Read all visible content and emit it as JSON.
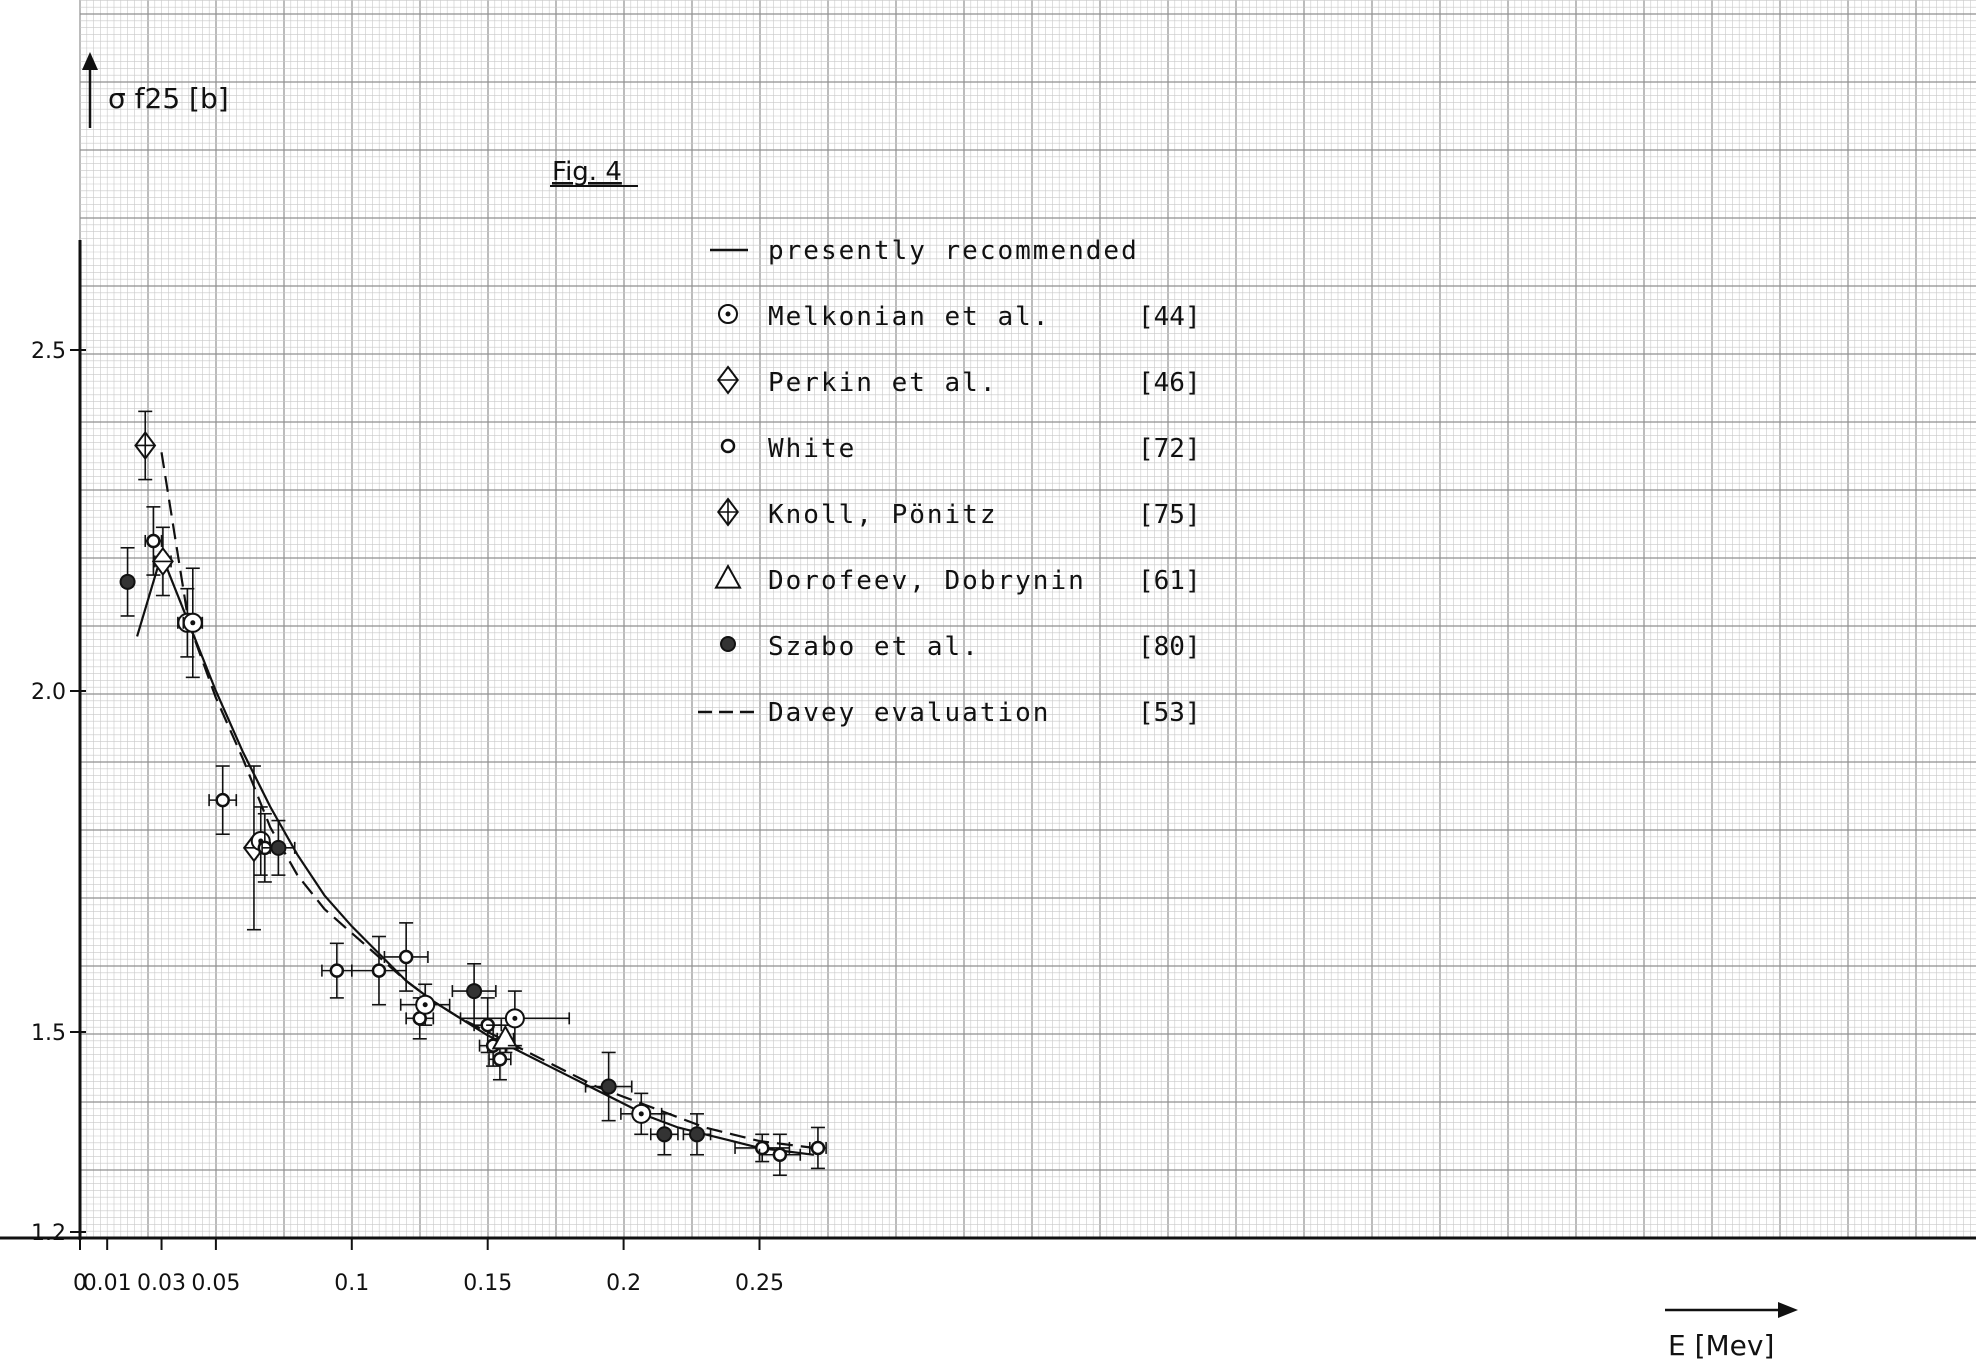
{
  "chart_data": {
    "type": "scatter",
    "title": "Fig. 4",
    "xlabel": "E [Mev]",
    "ylabel": "σ f25 [b]",
    "xlim": [
      0,
      0.275
    ],
    "ylim": [
      1.2,
      2.7
    ],
    "x_ticks": [
      {
        "value": 0,
        "label": "0"
      },
      {
        "value": 0.01,
        "label": "0.01"
      },
      {
        "value": 0.03,
        "label": "0.03"
      },
      {
        "value": 0.05,
        "label": "0.05"
      },
      {
        "value": 0.1,
        "label": "0.1"
      },
      {
        "value": 0.15,
        "label": "0.15"
      },
      {
        "value": 0.2,
        "label": "0.2"
      },
      {
        "value": 0.25,
        "label": "0.25"
      }
    ],
    "y_ticks": [
      {
        "value": 1.2,
        "label": "1.2"
      },
      {
        "value": 1.5,
        "label": "1.5"
      },
      {
        "value": 2.0,
        "label": "2.0"
      },
      {
        "value": 2.5,
        "label": "2.5"
      }
    ],
    "grid": true,
    "legend_position": "top-center",
    "legend": [
      {
        "key": "recommended",
        "label": "presently recommended",
        "ref": "",
        "symbol": "solid-line"
      },
      {
        "key": "melkonian",
        "label": "Melkonian et al.",
        "ref": "[44]",
        "symbol": "circle-dot"
      },
      {
        "key": "perkin",
        "label": "Perkin et al.",
        "ref": "[46]",
        "symbol": "diamond"
      },
      {
        "key": "white",
        "label": "White",
        "ref": "[72]",
        "symbol": "small-circle"
      },
      {
        "key": "knoll",
        "label": "Knoll, Pönitz",
        "ref": "[75]",
        "symbol": "diamond-cross"
      },
      {
        "key": "dorofeev",
        "label": "Dorofeev, Dobrynin",
        "ref": "[61]",
        "symbol": "triangle"
      },
      {
        "key": "szabo",
        "label": "Szabo et al.",
        "ref": "[80]",
        "symbol": "filled-circle"
      },
      {
        "key": "davey",
        "label": "Davey evaluation",
        "ref": "[53]",
        "symbol": "dashed-line"
      }
    ],
    "series": [
      {
        "name": "presently recommended",
        "style": "solid",
        "points": [
          [
            0.021,
            2.08
          ],
          [
            0.03,
            2.2
          ],
          [
            0.04,
            2.1
          ],
          [
            0.05,
            2.0
          ],
          [
            0.06,
            1.91
          ],
          [
            0.07,
            1.83
          ],
          [
            0.08,
            1.76
          ],
          [
            0.09,
            1.7
          ],
          [
            0.1,
            1.655
          ],
          [
            0.11,
            1.615
          ],
          [
            0.12,
            1.575
          ],
          [
            0.13,
            1.545
          ],
          [
            0.14,
            1.52
          ],
          [
            0.15,
            1.495
          ],
          [
            0.16,
            1.475
          ],
          [
            0.17,
            1.455
          ],
          [
            0.18,
            1.435
          ],
          [
            0.19,
            1.415
          ],
          [
            0.2,
            1.395
          ],
          [
            0.21,
            1.375
          ],
          [
            0.22,
            1.36
          ],
          [
            0.23,
            1.35
          ],
          [
            0.24,
            1.34
          ],
          [
            0.25,
            1.33
          ],
          [
            0.26,
            1.325
          ],
          [
            0.27,
            1.32
          ]
        ]
      },
      {
        "name": "Davey evaluation",
        "style": "dashed",
        "points": [
          [
            0.03,
            2.35
          ],
          [
            0.04,
            2.1
          ],
          [
            0.05,
            1.99
          ],
          [
            0.06,
            1.9
          ],
          [
            0.07,
            1.8
          ],
          [
            0.08,
            1.73
          ],
          [
            0.09,
            1.68
          ],
          [
            0.1,
            1.645
          ],
          [
            0.11,
            1.61
          ],
          [
            0.12,
            1.575
          ],
          [
            0.13,
            1.545
          ],
          [
            0.14,
            1.52
          ],
          [
            0.15,
            1.5
          ],
          [
            0.16,
            1.48
          ],
          [
            0.17,
            1.46
          ],
          [
            0.18,
            1.44
          ],
          [
            0.19,
            1.42
          ],
          [
            0.2,
            1.405
          ],
          [
            0.21,
            1.39
          ],
          [
            0.22,
            1.375
          ],
          [
            0.23,
            1.36
          ],
          [
            0.24,
            1.35
          ],
          [
            0.25,
            1.34
          ],
          [
            0.26,
            1.335
          ],
          [
            0.27,
            1.33
          ]
        ]
      }
    ],
    "points": [
      {
        "series": "Szabo et al.",
        "symbol": "filled-circle",
        "x": 0.0175,
        "y": 2.16,
        "xerr": 0.0018,
        "yerr": 0.05
      },
      {
        "series": "Knoll, Pönitz",
        "symbol": "diamond-cross",
        "x": 0.024,
        "y": 2.36,
        "xerr": 0,
        "yerr": 0.05
      },
      {
        "series": "White",
        "symbol": "small-circle",
        "x": 0.027,
        "y": 2.22,
        "xerr": 0.003,
        "yerr": 0.05
      },
      {
        "series": "Perkin et al.",
        "symbol": "diamond",
        "x": 0.0305,
        "y": 2.19,
        "xerr": 0.003,
        "yerr": 0.05
      },
      {
        "series": "Melkonian et al.",
        "symbol": "circle-dot",
        "x": 0.0395,
        "y": 2.1,
        "xerr": 0.0035,
        "yerr": 0.05
      },
      {
        "series": "Melkonian et al.",
        "symbol": "circle-dot",
        "x": 0.0415,
        "y": 2.1,
        "xerr": 0.0035,
        "yerr": 0.08
      },
      {
        "series": "White",
        "symbol": "small-circle",
        "x": 0.0525,
        "y": 1.84,
        "xerr": 0.005,
        "yerr": 0.05
      },
      {
        "series": "Perkin et al.",
        "symbol": "diamond",
        "x": 0.064,
        "y": 1.77,
        "xerr": 0.001,
        "yerr": 0.12
      },
      {
        "series": "Melkonian et al.",
        "symbol": "circle-dot",
        "x": 0.0665,
        "y": 1.78,
        "xerr": 0.002,
        "yerr": 0.05
      },
      {
        "series": "White",
        "symbol": "small-circle",
        "x": 0.068,
        "y": 1.77,
        "xerr": 0.002,
        "yerr": 0.05
      },
      {
        "series": "Szabo et al.",
        "symbol": "filled-circle",
        "x": 0.073,
        "y": 1.77,
        "xerr": 0.006,
        "yerr": 0.04
      },
      {
        "series": "White",
        "symbol": "small-circle",
        "x": 0.0945,
        "y": 1.59,
        "xerr": 0.0055,
        "yerr": 0.04
      },
      {
        "series": "White",
        "symbol": "small-circle",
        "x": 0.11,
        "y": 1.59,
        "xerr": 0.01,
        "yerr": 0.05
      },
      {
        "series": "White",
        "symbol": "small-circle",
        "x": 0.12,
        "y": 1.61,
        "xerr": 0.008,
        "yerr": 0.05
      },
      {
        "series": "White",
        "symbol": "small-circle",
        "x": 0.125,
        "y": 1.52,
        "xerr": 0.005,
        "yerr": 0.03
      },
      {
        "series": "Melkonian et al.",
        "symbol": "circle-dot",
        "x": 0.127,
        "y": 1.54,
        "xerr": 0.009,
        "yerr": 0.03
      },
      {
        "series": "Szabo et al.",
        "symbol": "filled-circle",
        "x": 0.145,
        "y": 1.56,
        "xerr": 0.008,
        "yerr": 0.04
      },
      {
        "series": "White",
        "symbol": "small-circle",
        "x": 0.15,
        "y": 1.51,
        "xerr": 0.005,
        "yerr": 0.04
      },
      {
        "series": "White",
        "symbol": "small-circle",
        "x": 0.152,
        "y": 1.48,
        "xerr": 0.005,
        "yerr": 0.03
      },
      {
        "series": "White",
        "symbol": "small-circle",
        "x": 0.1545,
        "y": 1.46,
        "xerr": 0.004,
        "yerr": 0.03
      },
      {
        "series": "Dorofeev, Dobrynin",
        "symbol": "triangle",
        "x": 0.1565,
        "y": 1.49,
        "xerr": 0.003,
        "yerr": 0.02
      },
      {
        "series": "Melkonian et al.",
        "symbol": "circle-dot",
        "x": 0.16,
        "y": 1.52,
        "xerr": 0.02,
        "yerr": 0.04
      },
      {
        "series": "Szabo et al.",
        "symbol": "filled-circle",
        "x": 0.1945,
        "y": 1.42,
        "xerr": 0.0085,
        "yerr": 0.05
      },
      {
        "series": "Melkonian et al.",
        "symbol": "circle-dot",
        "x": 0.2065,
        "y": 1.38,
        "xerr": 0.0075,
        "yerr": 0.03
      },
      {
        "series": "Szabo et al.",
        "symbol": "filled-circle",
        "x": 0.215,
        "y": 1.35,
        "xerr": 0.005,
        "yerr": 0.03
      },
      {
        "series": "Szabo et al.",
        "symbol": "filled-circle",
        "x": 0.227,
        "y": 1.35,
        "xerr": 0.005,
        "yerr": 0.03
      },
      {
        "series": "White",
        "symbol": "small-circle",
        "x": 0.251,
        "y": 1.33,
        "xerr": 0.01,
        "yerr": 0.02
      },
      {
        "series": "White",
        "symbol": "small-circle",
        "x": 0.2575,
        "y": 1.32,
        "xerr": 0.0075,
        "yerr": 0.03
      },
      {
        "series": "White",
        "symbol": "small-circle",
        "x": 0.2715,
        "y": 1.33,
        "xerr": 0.003,
        "yerr": 0.03
      }
    ],
    "colors": {
      "ink": "#111111",
      "grid_minor": "#c9c9c9",
      "grid_major": "#8f8f8f",
      "paper": "#ffffff"
    }
  }
}
